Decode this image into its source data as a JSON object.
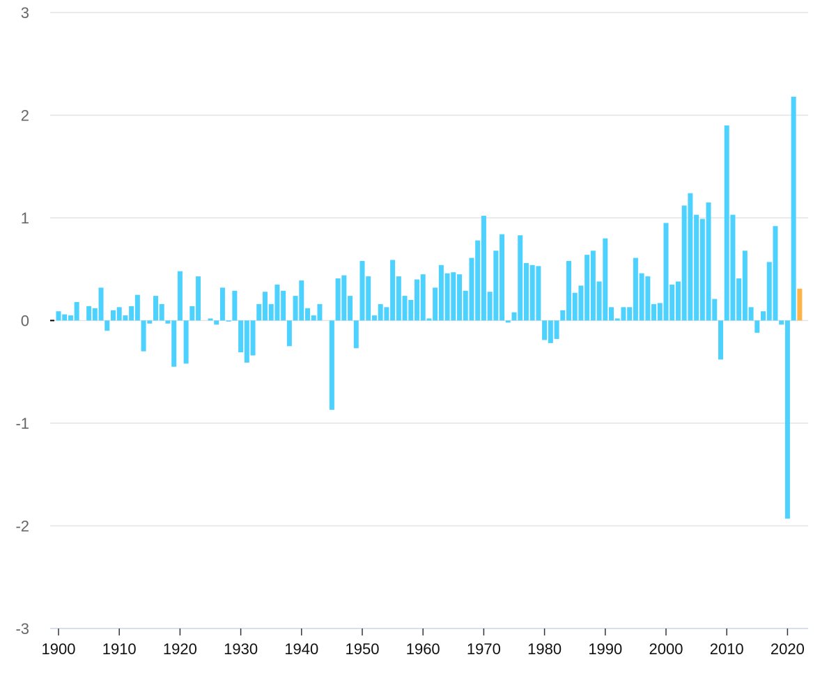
{
  "chart_data": {
    "type": "bar",
    "title": "",
    "xlabel": "",
    "ylabel": "",
    "ylim": [
      -3,
      3
    ],
    "yticks": [
      3,
      2,
      1,
      0,
      -1,
      -2,
      -3
    ],
    "ytick_labels": [
      "3",
      "2",
      "1",
      "0",
      "-1",
      "-2",
      "-3"
    ],
    "xticks": [
      1900,
      1910,
      1920,
      1930,
      1940,
      1950,
      1960,
      1970,
      1980,
      1990,
      2000,
      2010,
      2020
    ],
    "xtick_labels": [
      "1900",
      "1910",
      "1920",
      "1930",
      "1940",
      "1950",
      "1960",
      "1970",
      "1980",
      "1990",
      "2000",
      "2010",
      "2020"
    ],
    "grid": true,
    "legend": "none",
    "colors": {
      "bar": "#4dd2ff",
      "highlight": "#ffb347",
      "grid": "#e3e3e3",
      "axis": "#ccd6eb"
    },
    "highlight_year": 2022,
    "x": [
      1900,
      1901,
      1902,
      1903,
      1904,
      1905,
      1906,
      1907,
      1908,
      1909,
      1910,
      1911,
      1912,
      1913,
      1914,
      1915,
      1916,
      1917,
      1918,
      1919,
      1920,
      1921,
      1922,
      1923,
      1924,
      1925,
      1926,
      1927,
      1928,
      1929,
      1930,
      1931,
      1932,
      1933,
      1934,
      1935,
      1936,
      1937,
      1938,
      1939,
      1940,
      1941,
      1942,
      1943,
      1944,
      1945,
      1946,
      1947,
      1948,
      1949,
      1950,
      1951,
      1952,
      1953,
      1954,
      1955,
      1956,
      1957,
      1958,
      1959,
      1960,
      1961,
      1962,
      1963,
      1964,
      1965,
      1966,
      1967,
      1968,
      1969,
      1970,
      1971,
      1972,
      1973,
      1974,
      1975,
      1976,
      1977,
      1978,
      1979,
      1980,
      1981,
      1982,
      1983,
      1984,
      1985,
      1986,
      1987,
      1988,
      1989,
      1990,
      1991,
      1992,
      1993,
      1994,
      1995,
      1996,
      1997,
      1998,
      1999,
      2000,
      2001,
      2002,
      2003,
      2004,
      2005,
      2006,
      2007,
      2008,
      2009,
      2010,
      2011,
      2012,
      2013,
      2014,
      2015,
      2016,
      2017,
      2018,
      2019,
      2020,
      2021,
      2022
    ],
    "values": [
      0.09,
      0.06,
      0.05,
      0.18,
      0.0,
      0.14,
      0.12,
      0.32,
      -0.1,
      0.1,
      0.13,
      0.05,
      0.14,
      0.25,
      -0.3,
      -0.03,
      0.24,
      0.16,
      -0.03,
      -0.45,
      0.48,
      -0.42,
      0.14,
      0.43,
      0.0,
      0.02,
      -0.04,
      0.32,
      -0.01,
      0.29,
      -0.31,
      -0.41,
      -0.34,
      0.16,
      0.28,
      0.16,
      0.35,
      0.29,
      -0.25,
      0.24,
      0.39,
      0.12,
      0.05,
      0.16,
      0.0,
      -0.87,
      0.41,
      0.44,
      0.24,
      -0.27,
      0.58,
      0.43,
      0.05,
      0.16,
      0.13,
      0.59,
      0.43,
      0.24,
      0.2,
      0.4,
      0.45,
      0.02,
      0.32,
      0.54,
      0.46,
      0.47,
      0.45,
      0.29,
      0.61,
      0.78,
      1.02,
      0.28,
      0.68,
      0.84,
      -0.02,
      0.08,
      0.83,
      0.56,
      0.54,
      0.53,
      -0.19,
      -0.22,
      -0.18,
      0.1,
      0.58,
      0.27,
      0.34,
      0.64,
      0.68,
      0.38,
      0.8,
      0.13,
      0.02,
      0.13,
      0.13,
      0.61,
      0.46,
      0.43,
      0.16,
      0.17,
      0.95,
      0.35,
      0.38,
      1.12,
      1.24,
      1.03,
      0.99,
      1.15,
      0.21,
      -0.38,
      1.9,
      1.03,
      0.41,
      0.68,
      0.13,
      -0.12,
      0.09,
      0.57,
      0.92,
      -0.04,
      -1.93,
      2.18,
      0.31
    ]
  }
}
